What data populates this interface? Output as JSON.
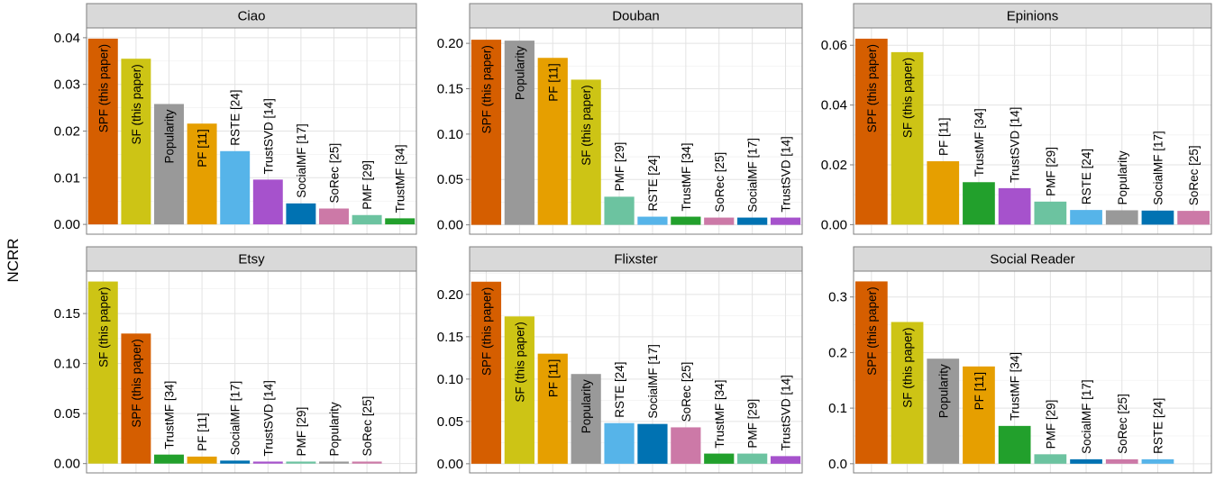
{
  "ylabel": "NCRR",
  "colors": {
    "SPF (this paper)": "#d55e00",
    "SF (this paper)": "#cdc415",
    "Popularity": "#999999",
    "PF [11]": "#e69f00",
    "RSTE [24]": "#56b4e9",
    "TrustSVD [14]": "#a652cc",
    "SocialMF [17]": "#0072b2",
    "SoRec [25]": "#cc79a7",
    "PMF [29]": "#6cc3a0",
    "TrustMF [34]": "#22a02c"
  },
  "chart_data": [
    {
      "type": "bar",
      "title": "Ciao",
      "categories": [
        "SPF (this paper)",
        "SF (this paper)",
        "Popularity",
        "PF [11]",
        "RSTE [24]",
        "TrustSVD [14]",
        "SocialMF [17]",
        "SoRec [25]",
        "PMF [29]",
        "TrustMF [34]"
      ],
      "values": [
        0.0398,
        0.0355,
        0.0258,
        0.0216,
        0.0157,
        0.0096,
        0.0045,
        0.0034,
        0.002,
        0.0013
      ],
      "ylim": [
        -0.0021,
        0.0421
      ],
      "yticks": [
        0.0,
        0.01,
        0.02,
        0.03,
        0.04
      ],
      "yticklabels": [
        "0.00",
        "0.01",
        "0.02",
        "0.03",
        "0.04"
      ],
      "grid": true
    },
    {
      "type": "bar",
      "title": "Douban",
      "categories": [
        "SPF (this paper)",
        "Popularity",
        "PF [11]",
        "SF (this paper)",
        "PMF [29]",
        "RSTE [24]",
        "TrustMF [34]",
        "SoRec [25]",
        "SocialMF [17]",
        "TrustSVD [14]"
      ],
      "values": [
        0.204,
        0.203,
        0.184,
        0.16,
        0.031,
        0.009,
        0.009,
        0.008,
        0.008,
        0.008
      ],
      "ylim": [
        -0.0103,
        0.217
      ],
      "yticks": [
        0.0,
        0.05,
        0.1,
        0.15,
        0.2
      ],
      "yticklabels": [
        "0.00",
        "0.05",
        "0.10",
        "0.15",
        "0.20"
      ],
      "grid": true
    },
    {
      "type": "bar",
      "title": "Epinions",
      "categories": [
        "SPF (this paper)",
        "SF (this paper)",
        "PF [11]",
        "TrustMF [34]",
        "TrustSVD [14]",
        "PMF [29]",
        "RSTE [24]",
        "Popularity",
        "SocialMF [17]",
        "SoRec [25]"
      ],
      "values": [
        0.0622,
        0.0577,
        0.0212,
        0.0142,
        0.0122,
        0.0077,
        0.0049,
        0.0048,
        0.0047,
        0.0046
      ],
      "ylim": [
        -0.0032,
        0.0658
      ],
      "yticks": [
        0.0,
        0.02,
        0.04,
        0.06
      ],
      "yticklabels": [
        "0.00",
        "0.02",
        "0.04",
        "0.06"
      ],
      "grid": true
    },
    {
      "type": "bar",
      "title": "Etsy",
      "categories": [
        "SF (this paper)",
        "SPF (this paper)",
        "TrustMF [34]",
        "PF [11]",
        "SocialMF [17]",
        "TrustSVD [14]",
        "PMF [29]",
        "Popularity",
        "SoRec [25]"
      ],
      "values": [
        0.182,
        0.13,
        0.009,
        0.007,
        0.003,
        0.002,
        0.002,
        0.002,
        0.002
      ],
      "ylim": [
        -0.0093,
        0.1924
      ],
      "yticks": [
        0.0,
        0.05,
        0.1,
        0.15
      ],
      "yticklabels": [
        "0.00",
        "0.05",
        "0.10",
        "0.15"
      ],
      "grid": true
    },
    {
      "type": "bar",
      "title": "Flixster",
      "categories": [
        "SPF (this paper)",
        "SF (this paper)",
        "PF [11]",
        "Popularity",
        "RSTE [24]",
        "SocialMF [17]",
        "SoRec [25]",
        "TrustMF [34]",
        "PMF [29]",
        "TrustSVD [14]"
      ],
      "values": [
        0.215,
        0.174,
        0.13,
        0.106,
        0.048,
        0.047,
        0.043,
        0.012,
        0.012,
        0.009
      ],
      "ylim": [
        -0.0108,
        0.2275
      ],
      "yticks": [
        0.0,
        0.05,
        0.1,
        0.15,
        0.2
      ],
      "yticklabels": [
        "0.00",
        "0.05",
        "0.10",
        "0.15",
        "0.20"
      ],
      "grid": true
    },
    {
      "type": "bar",
      "title": "Social Reader",
      "categories": [
        "SPF (this paper)",
        "SF (this paper)",
        "Popularity",
        "PF [11]",
        "TrustMF [34]",
        "PMF [29]",
        "SocialMF [17]",
        "SoRec [25]",
        "RSTE [24]"
      ],
      "values": [
        0.328,
        0.255,
        0.189,
        0.175,
        0.068,
        0.017,
        0.008,
        0.008,
        0.008
      ],
      "ylim": [
        -0.0165,
        0.3465
      ],
      "yticks": [
        0.0,
        0.1,
        0.2,
        0.3
      ],
      "yticklabels": [
        "0.0",
        "0.1",
        "0.2",
        "0.3"
      ],
      "grid": true
    }
  ]
}
